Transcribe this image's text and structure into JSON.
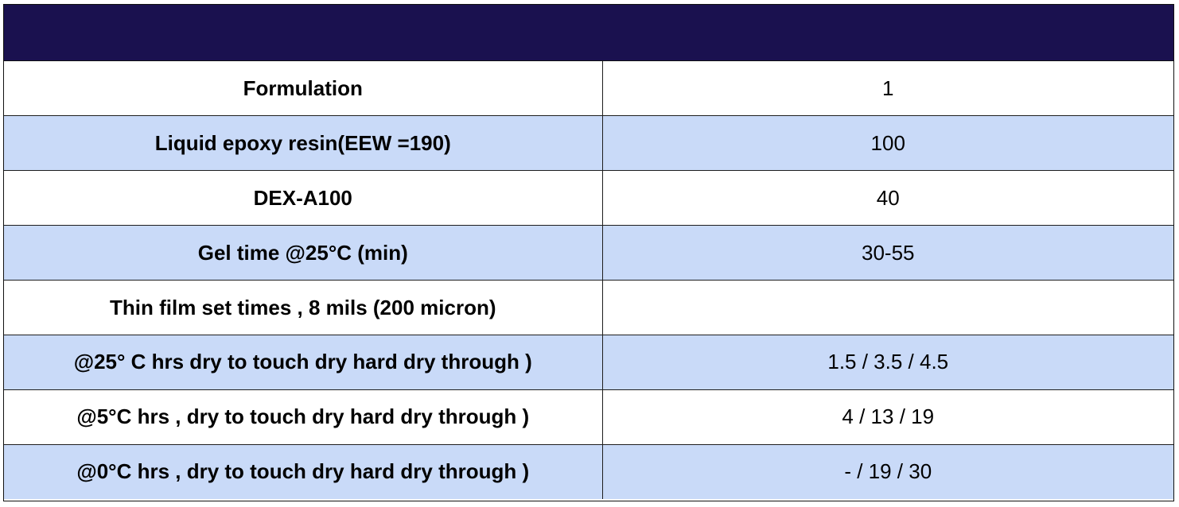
{
  "colors": {
    "header_band": "#1a114f",
    "shaded_row": "#c9daf8",
    "plain_row": "#ffffff",
    "border": "#1e1e1e"
  },
  "header": {
    "title": ""
  },
  "table": {
    "rows": [
      {
        "label": "Formulation",
        "value": "1",
        "shaded": false
      },
      {
        "label": "Liquid epoxy resin(EEW =190)",
        "value": "100",
        "shaded": true
      },
      {
        "label": "DEX-A100",
        "value": "40",
        "shaded": false
      },
      {
        "label": "Gel time @25°C (min)",
        "value": "30-55",
        "shaded": true
      },
      {
        "label": "Thin film set times , 8 mils (200 micron)",
        "value": "",
        "shaded": false
      },
      {
        "label": "@25° C hrs dry to touch dry hard dry through )",
        "value": "1.5 / 3.5 / 4.5",
        "shaded": true
      },
      {
        "label": "@5°C hrs , dry to touch dry hard dry through )",
        "value": "4 / 13 / 19",
        "shaded": false
      },
      {
        "label": "@0°C hrs , dry to touch dry hard dry through )",
        "value": "- / 19 / 30",
        "shaded": true
      }
    ]
  }
}
